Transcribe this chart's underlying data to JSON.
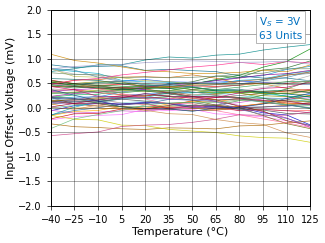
{
  "title": "",
  "xlabel": "Temperature (°C)",
  "ylabel": "Input Offset Voltage (mV)",
  "xlim": [
    -40,
    125
  ],
  "ylim": [
    -2,
    2
  ],
  "xticks": [
    -40,
    -25,
    -10,
    5,
    20,
    35,
    50,
    65,
    80,
    95,
    110,
    125
  ],
  "yticks": [
    -2,
    -1.5,
    -1,
    -0.5,
    0,
    0.5,
    1,
    1.5,
    2
  ],
  "annotation_color": "#0070C0",
  "n_units": 63,
  "seed": 42,
  "background_color": "#ffffff",
  "grid_color": "#000000",
  "xlabel_fontsize": 8,
  "ylabel_fontsize": 8,
  "tick_fontsize": 7,
  "annotation_fontsize": 7.5,
  "colors_list": [
    "#e60000",
    "#ff4444",
    "#cc0000",
    "#880000",
    "#0000cc",
    "#0044ff",
    "#4488ff",
    "#0088cc",
    "#00aacc",
    "#006688",
    "#00aa44",
    "#008800",
    "#44bb44",
    "#007700",
    "#226622",
    "#cc6600",
    "#ff8800",
    "#ffaa00",
    "#cc8800",
    "#aa6600",
    "#884400",
    "#aa4400",
    "#cc2200",
    "#aa00aa",
    "#880088",
    "#cc44cc",
    "#ff66ff",
    "#006666",
    "#008888",
    "#00aaaa",
    "#44cccc",
    "#88dddd",
    "#666600",
    "#888800",
    "#aaaa00",
    "#cccc00",
    "#bbbb44",
    "#444444",
    "#666666",
    "#888888",
    "#aaaaaa",
    "#bbbbbb",
    "#cc4488",
    "#ff6699",
    "#aa2266",
    "#004488",
    "#226699",
    "#4488aa",
    "#884400",
    "#aa6622",
    "#cc8844",
    "#448844",
    "#226633",
    "#668866",
    "#cc0066",
    "#ff2288",
    "#880044",
    "#333399",
    "#6666bb",
    "#9999cc",
    "#006633",
    "#339944",
    "#66bb77"
  ]
}
